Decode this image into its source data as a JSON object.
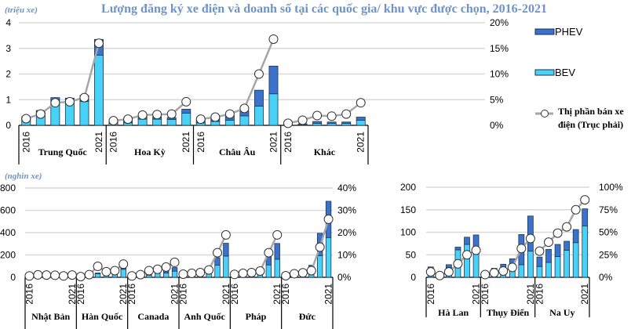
{
  "title": "Lượng đăng ký xe điện và doanh số tại các quốc gia/ khu vực được chọn, 2016-2021",
  "colors": {
    "phev": "#3b72cc",
    "bev": "#48d2f8",
    "share_line": "#a6a6a6",
    "title": "#6f93c4"
  },
  "legend": {
    "phev": "PHEV",
    "bev": "BEV",
    "share_line_1": "Thị phần bán xe",
    "share_line_2": "điện (Trục phải)",
    "placement": "right"
  },
  "chart_data": [
    {
      "type": "bar",
      "stacked": true,
      "unit_label": "(triệu xe)",
      "ylim": [
        0,
        4
      ],
      "yticks": [
        "0",
        "1",
        "2",
        "3",
        "4"
      ],
      "y2lim": [
        0,
        20
      ],
      "y2ticks": [
        "0%",
        "5%",
        "10%",
        "15%",
        "20%"
      ],
      "year_labels": [
        "2016",
        "2021"
      ],
      "groups": [
        {
          "name": "Trung Quốc",
          "bev": [
            0.26,
            0.47,
            0.85,
            0.84,
            0.93,
            2.73
          ],
          "phev": [
            0.08,
            0.11,
            0.23,
            0.22,
            0.23,
            0.62
          ],
          "share": [
            1.3,
            2.2,
            4.4,
            4.6,
            5.4,
            16
          ]
        },
        {
          "name": "Hoa Kỳ",
          "bev": [
            0.08,
            0.1,
            0.24,
            0.24,
            0.23,
            0.47
          ],
          "phev": [
            0.08,
            0.1,
            0.12,
            0.09,
            0.07,
            0.16
          ],
          "share": [
            0.9,
            1.2,
            2.0,
            2.1,
            2.2,
            4.6
          ]
        },
        {
          "name": "Châu Âu",
          "bev": [
            0.09,
            0.15,
            0.2,
            0.37,
            0.75,
            1.23
          ],
          "phev": [
            0.12,
            0.16,
            0.18,
            0.19,
            0.62,
            1.08
          ],
          "share": [
            1.2,
            1.6,
            2.2,
            3.3,
            10,
            16.8
          ]
        },
        {
          "name": "Khác",
          "bev": [
            0.01,
            0.02,
            0.08,
            0.08,
            0.08,
            0.2
          ],
          "phev": [
            0.03,
            0.04,
            0.07,
            0.05,
            0.05,
            0.12
          ],
          "share": [
            0.4,
            1.0,
            1.9,
            1.8,
            2.2,
            4.4
          ]
        }
      ]
    },
    {
      "type": "bar",
      "stacked": true,
      "unit_label": "(nghìn xe)",
      "ylim": [
        0,
        800
      ],
      "yticks": [
        "0",
        "200",
        "400",
        "600",
        "800"
      ],
      "y2lim": [
        0,
        40
      ],
      "y2ticks": [
        "0%",
        "10%",
        "20%",
        "30%",
        "40%"
      ],
      "year_labels": [
        "2016",
        "2021"
      ],
      "groups": [
        {
          "name": "Nhật Bản",
          "bev": [
            10,
            20,
            18,
            15,
            15,
            21
          ],
          "phev": [
            15,
            35,
            30,
            23,
            15,
            22
          ],
          "share": [
            0.6,
            1.1,
            1.0,
            0.9,
            0.6,
            1.0
          ]
        },
        {
          "name": "Hàn Quốc",
          "bev": [
            5,
            14,
            31,
            35,
            31,
            72
          ],
          "phev": [
            1,
            2,
            7,
            9,
            16,
            28
          ],
          "share": [
            0.3,
            1.2,
            4.9,
            2.5,
            3.0,
            5.9
          ]
        },
        {
          "name": "Canada",
          "bev": [
            5,
            15,
            19,
            37,
            39,
            55
          ],
          "phev": [
            6,
            11,
            24,
            21,
            23,
            32
          ],
          "share": [
            0.6,
            1.2,
            3.0,
            3.6,
            4.6,
            6.7
          ]
        },
        {
          "name": "Anh Quốc",
          "bev": [
            10,
            14,
            16,
            38,
            108,
            190
          ],
          "phev": [
            27,
            33,
            41,
            35,
            67,
            115
          ],
          "share": [
            1.4,
            1.8,
            2.1,
            3.3,
            11,
            19
          ]
        },
        {
          "name": "Pháp",
          "bev": [
            22,
            25,
            30,
            43,
            111,
            162
          ],
          "phev": [
            7,
            12,
            16,
            20,
            74,
            141
          ],
          "share": [
            1.3,
            1.8,
            2.1,
            2.8,
            11,
            19
          ]
        },
        {
          "name": "Đức",
          "bev": [
            11,
            25,
            36,
            63,
            194,
            356
          ],
          "phev": [
            14,
            30,
            31,
            45,
            200,
            325
          ],
          "share": [
            0.7,
            1.6,
            2.0,
            3.0,
            13.5,
            26
          ]
        }
      ]
    },
    {
      "type": "bar",
      "stacked": true,
      "unit_label": "",
      "ylim": [
        0,
        200
      ],
      "yticks": [
        "0",
        "50",
        "100",
        "150",
        "200"
      ],
      "y2lim": [
        0,
        100
      ],
      "y2ticks": [
        "0%",
        "25%",
        "50%",
        "75%",
        "100%"
      ],
      "year_labels": [
        "2016",
        "2021"
      ],
      "groups": [
        {
          "name": "Hà Lan",
          "bev": [
            4,
            9,
            22,
            61,
            73,
            55
          ],
          "phev": [
            19,
            1,
            6,
            6,
            16,
            39
          ],
          "share": [
            6,
            2,
            6,
            15,
            25,
            30
          ]
        },
        {
          "name": "Thụy Điển",
          "bev": [
            3,
            4,
            8,
            16,
            28,
            58
          ],
          "phev": [
            10,
            16,
            21,
            25,
            67,
            78
          ],
          "share": [
            3,
            5,
            7,
            11,
            32,
            43
          ]
        },
        {
          "name": "Na Uy",
          "bev": [
            24,
            33,
            46,
            60,
            77,
            114
          ],
          "phev": [
            21,
            29,
            27,
            20,
            29,
            38
          ],
          "share": [
            29,
            39,
            49,
            56,
            75,
            86
          ]
        }
      ]
    }
  ]
}
